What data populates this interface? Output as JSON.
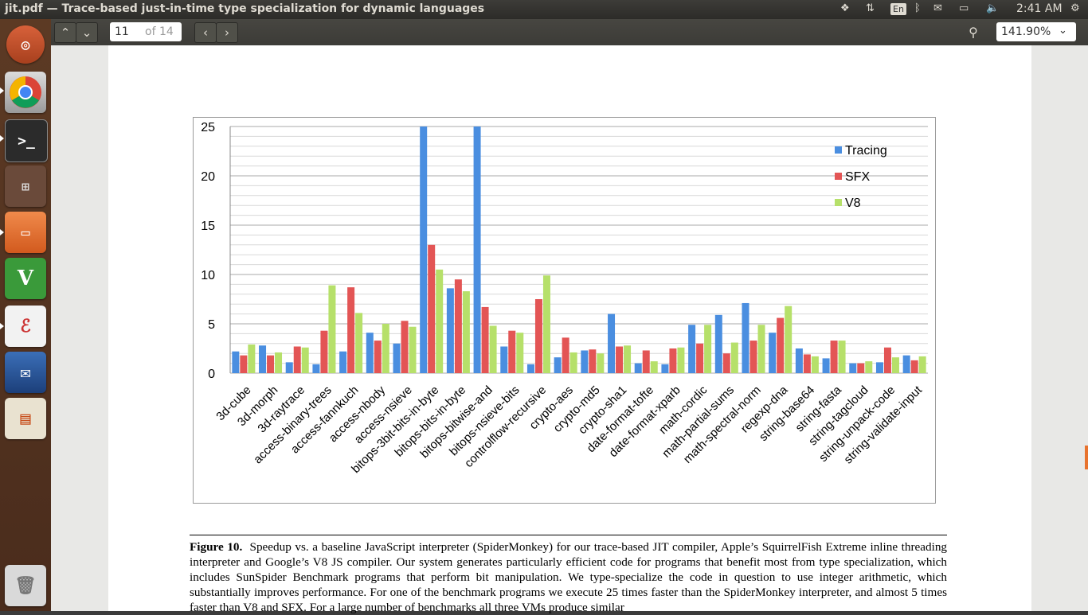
{
  "top_panel": {
    "window_title": "jit.pdf — Trace-based just-in-time type specialization for dynamic languages",
    "language_indicator": "En",
    "clock": "2:41 AM",
    "indicator_icons": [
      "dropbox-icon",
      "network-transfer-icon",
      "keyboard-layout-icon",
      "bluetooth-icon",
      "mail-icon",
      "battery-icon",
      "volume-icon",
      "clock"
    ]
  },
  "launcher": {
    "items": [
      "ubuntu-dash-icon",
      "chrome-icon",
      "terminal-icon",
      "workspace-switcher-icon",
      "files-icon",
      "vim-icon",
      "pdf-viewer-icon",
      "thunderbird-icon",
      "presentation-icon",
      "trash-icon"
    ]
  },
  "viewer_toolbar": {
    "current_page": "11",
    "page_of": "of 14",
    "zoom": "141.90%"
  },
  "chart_data": {
    "type": "bar",
    "ylim": [
      0,
      25
    ],
    "yticks": [
      "0",
      "5",
      "10",
      "15",
      "20",
      "25"
    ],
    "legend_position": "top-right",
    "categories": [
      "3d-cube",
      "3d-morph",
      "3d-raytrace",
      "access-binary-trees",
      "access-fannkuch",
      "access-nbody",
      "access-nsieve",
      "bitops-3bit-bits-in-byte",
      "bitops-bits-in-byte",
      "bitops-bitwise-and",
      "bitops-nsieve-bits",
      "controlflow-recursive",
      "crypto-aes",
      "crypto-md5",
      "crypto-sha1",
      "date-format-tofte",
      "date-format-xparb",
      "math-cordic",
      "math-partial-sums",
      "math-spectral-norm",
      "regexp-dna",
      "string-base64",
      "string-fasta",
      "string-tagcloud",
      "string-unpack-code",
      "string-validate-input"
    ],
    "series": [
      {
        "name": "Tracing",
        "color": "#4a8ee0",
        "values": [
          2.2,
          2.8,
          1.1,
          0.9,
          2.2,
          4.1,
          3.0,
          25,
          8.6,
          25,
          2.7,
          0.9,
          1.6,
          2.3,
          6.0,
          1.0,
          0.9,
          4.9,
          5.9,
          7.1,
          4.1,
          2.5,
          1.5,
          1.0,
          1.1,
          1.8
        ]
      },
      {
        "name": "SFX",
        "color": "#e35555",
        "values": [
          1.8,
          1.8,
          2.7,
          4.3,
          8.7,
          3.3,
          5.3,
          13.0,
          9.5,
          6.7,
          4.3,
          7.5,
          3.6,
          2.4,
          2.7,
          2.3,
          2.5,
          3.0,
          2.0,
          3.3,
          5.6,
          1.9,
          3.3,
          1.0,
          2.6,
          1.3
        ]
      },
      {
        "name": "V8",
        "color": "#b6e06a",
        "values": [
          2.9,
          2.1,
          2.6,
          8.9,
          6.1,
          5.0,
          4.7,
          10.5,
          8.3,
          4.8,
          4.1,
          9.9,
          2.1,
          2.0,
          2.8,
          1.2,
          2.6,
          4.9,
          3.1,
          4.9,
          6.8,
          1.7,
          3.3,
          1.2,
          1.6,
          1.7
        ]
      }
    ]
  },
  "caption": {
    "label": "Figure 10.",
    "text": "Speedup vs. a baseline JavaScript interpreter (SpiderMonkey) for our trace-based JIT compiler, Apple’s SquirrelFish Extreme inline threading interpreter and Google’s V8 JS compiler. Our system generates particularly efficient code for programs that benefit most from type specialization, which includes SunSpider Benchmark programs that perform bit manipulation. We type-specialize the code in question to use integer arithmetic, which substantially improves performance. For one of the benchmark programs we execute 25 times faster than the SpiderMonkey interpreter, and almost 5 times faster than V8 and SFX. For a large number of benchmarks all three VMs produce similar"
  }
}
